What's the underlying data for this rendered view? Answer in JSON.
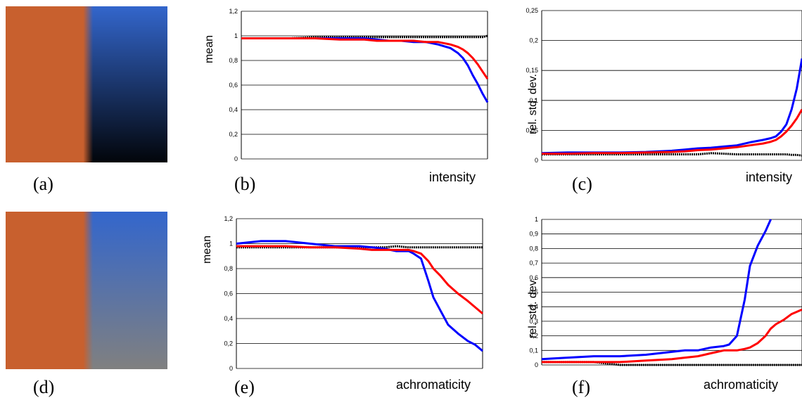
{
  "swatches": {
    "a": {
      "left_color": "#c8602e",
      "right_top_color": "#3366cc",
      "right_bottom_color": "#02050a"
    },
    "d": {
      "left_color": "#c8602e",
      "right_top_color": "#3366cc",
      "right_bottom_color": "#808080"
    }
  },
  "panel_labels": [
    "(a)",
    "(b)",
    "(c)",
    "(d)",
    "(e)",
    "(f)"
  ],
  "series_colors": {
    "black": "#000000",
    "blue": "#0000ff",
    "red": "#ff0000"
  },
  "chart_data": [
    {
      "id": "b",
      "type": "line",
      "ylabel": "mean",
      "xlabel": "intensity",
      "ylim": [
        0,
        1.2
      ],
      "yticks": [
        "0",
        "0,2",
        "0,4",
        "0,6",
        "0,8",
        "1",
        "1,2"
      ],
      "grid": true,
      "x": [
        0,
        10,
        20,
        30,
        40,
        50,
        55,
        60,
        65,
        70,
        75,
        80,
        85,
        88,
        90,
        92,
        94,
        96,
        98,
        100
      ],
      "series": [
        {
          "color": "black",
          "values": [
            0.98,
            0.98,
            0.98,
            0.99,
            0.99,
            0.99,
            0.99,
            0.99,
            0.99,
            0.99,
            0.99,
            0.99,
            0.99,
            0.99,
            0.99,
            0.99,
            0.99,
            0.99,
            0.99,
            1.0
          ]
        },
        {
          "color": "blue",
          "values": [
            0.98,
            0.98,
            0.98,
            0.98,
            0.98,
            0.98,
            0.97,
            0.96,
            0.96,
            0.95,
            0.95,
            0.93,
            0.9,
            0.86,
            0.82,
            0.76,
            0.68,
            0.61,
            0.53,
            0.46
          ]
        },
        {
          "color": "red",
          "values": [
            0.98,
            0.98,
            0.98,
            0.98,
            0.97,
            0.97,
            0.96,
            0.96,
            0.96,
            0.96,
            0.95,
            0.95,
            0.93,
            0.91,
            0.89,
            0.86,
            0.82,
            0.77,
            0.71,
            0.65
          ]
        }
      ]
    },
    {
      "id": "c",
      "type": "line",
      "ylabel": "rel. std. dev.",
      "xlabel": "intensity",
      "ylim": [
        0,
        0.25
      ],
      "yticks": [
        "0",
        "0,05",
        "0,1",
        "0,15",
        "0,2",
        "0,25"
      ],
      "grid": true,
      "x": [
        0,
        10,
        20,
        30,
        40,
        50,
        55,
        60,
        65,
        70,
        75,
        80,
        85,
        88,
        90,
        92,
        94,
        96,
        98,
        100
      ],
      "series": [
        {
          "color": "black",
          "values": [
            0.01,
            0.01,
            0.01,
            0.01,
            0.01,
            0.01,
            0.01,
            0.01,
            0.012,
            0.011,
            0.01,
            0.01,
            0.01,
            0.01,
            0.01,
            0.01,
            0.01,
            0.009,
            0.009,
            0.008
          ]
        },
        {
          "color": "blue",
          "values": [
            0.012,
            0.013,
            0.013,
            0.013,
            0.014,
            0.016,
            0.018,
            0.02,
            0.021,
            0.023,
            0.025,
            0.03,
            0.034,
            0.037,
            0.04,
            0.048,
            0.06,
            0.085,
            0.12,
            0.17
          ]
        },
        {
          "color": "red",
          "values": [
            0.011,
            0.011,
            0.012,
            0.012,
            0.013,
            0.014,
            0.015,
            0.017,
            0.018,
            0.02,
            0.022,
            0.025,
            0.028,
            0.031,
            0.034,
            0.04,
            0.048,
            0.058,
            0.07,
            0.085
          ]
        }
      ]
    },
    {
      "id": "e",
      "type": "line",
      "ylabel": "mean",
      "xlabel": "achromaticity",
      "ylim": [
        0,
        1.2
      ],
      "yticks": [
        "0",
        "0,2",
        "0,4",
        "0,6",
        "0,8",
        "1",
        "1,2"
      ],
      "grid": true,
      "x": [
        0,
        10,
        20,
        30,
        40,
        50,
        55,
        60,
        65,
        70,
        72,
        75,
        78,
        80,
        83,
        86,
        90,
        94,
        97,
        100
      ],
      "series": [
        {
          "color": "black",
          "values": [
            0.97,
            0.97,
            0.97,
            0.97,
            0.97,
            0.97,
            0.97,
            0.97,
            0.98,
            0.97,
            0.97,
            0.97,
            0.97,
            0.97,
            0.97,
            0.97,
            0.97,
            0.97,
            0.97,
            0.97
          ]
        },
        {
          "color": "blue",
          "values": [
            1.0,
            1.02,
            1.02,
            1.0,
            0.98,
            0.98,
            0.97,
            0.96,
            0.94,
            0.94,
            0.92,
            0.88,
            0.7,
            0.57,
            0.46,
            0.35,
            0.28,
            0.22,
            0.19,
            0.14
          ]
        },
        {
          "color": "red",
          "values": [
            0.98,
            0.98,
            0.98,
            0.97,
            0.97,
            0.96,
            0.95,
            0.95,
            0.95,
            0.95,
            0.94,
            0.92,
            0.86,
            0.8,
            0.74,
            0.67,
            0.6,
            0.54,
            0.49,
            0.44
          ]
        }
      ]
    },
    {
      "id": "f",
      "type": "line",
      "ylabel": "rel. std. dev.",
      "xlabel": "achromaticity",
      "ylim": [
        0,
        1
      ],
      "yticks": [
        "0",
        "0,1",
        "0,2",
        "0,3",
        "0,4",
        "0,5",
        "0,6",
        "0,7",
        "0,8",
        "0,9",
        "1"
      ],
      "grid": true,
      "x": [
        0,
        10,
        20,
        30,
        40,
        50,
        55,
        60,
        65,
        70,
        72,
        75,
        78,
        80,
        83,
        86,
        88,
        90,
        93,
        96,
        100
      ],
      "series": [
        {
          "color": "black",
          "values": [
            0.02,
            0.02,
            0.02,
            0.0,
            0.0,
            0.0,
            0.0,
            0.0,
            0.0,
            0.0,
            0.0,
            0.0,
            0.0,
            0.0,
            0.0,
            0.0,
            0.0,
            0.0,
            0.0,
            0.0,
            0.0
          ]
        },
        {
          "color": "blue",
          "values": [
            0.04,
            0.05,
            0.06,
            0.06,
            0.07,
            0.09,
            0.1,
            0.1,
            0.12,
            0.13,
            0.14,
            0.2,
            0.45,
            0.68,
            0.82,
            0.92,
            1.0,
            null,
            null,
            null,
            null
          ]
        },
        {
          "color": "red",
          "values": [
            0.02,
            0.02,
            0.02,
            0.02,
            0.03,
            0.04,
            0.05,
            0.06,
            0.08,
            0.1,
            0.1,
            0.1,
            0.11,
            0.12,
            0.15,
            0.2,
            0.25,
            0.28,
            0.31,
            0.35,
            0.38
          ]
        }
      ]
    }
  ]
}
